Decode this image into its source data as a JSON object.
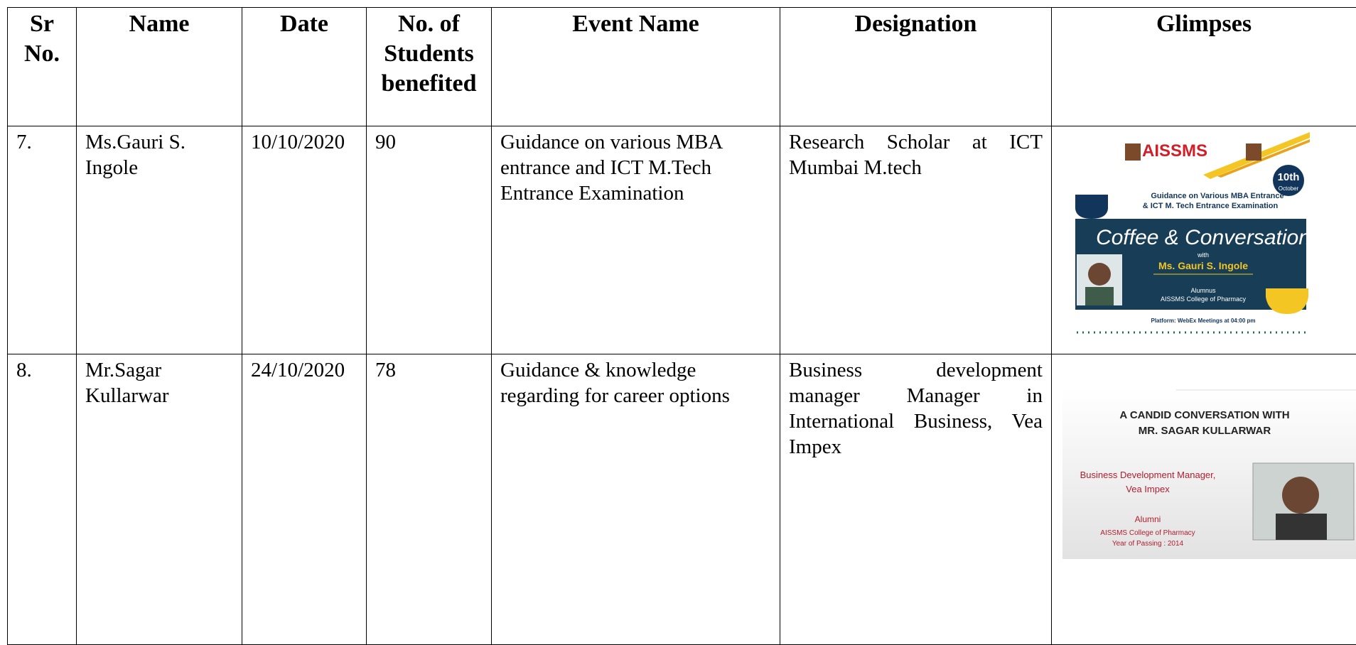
{
  "table": {
    "headers": [
      "Sr No.",
      "Name",
      "Date",
      "No. of Students benefited",
      "Event Name",
      "Designation",
      "Glimpses"
    ],
    "rows": [
      {
        "sr": "7.",
        "name": "Ms.Gauri S. Ingole",
        "date": "10/10/2020",
        "students": 90,
        "event": "Guidance on various MBA entrance and ICT M.Tech Entrance Examination",
        "designation": "Research Scholar at ICT Mumbai M.tech",
        "glimpse": {
          "org": "AISSMS",
          "day": "10th",
          "month": "October",
          "line1": "Guidance on Various MBA Entrance",
          "line2": "& ICT M. Tech Entrance Examination",
          "title": "Coffee & Conversation",
          "with": "with",
          "guest": "Ms. Gauri S. Ingole",
          "role": "Alumnus",
          "college": "AISSMS College of Pharmacy",
          "platform": "Platform: WebEx Meetings at 04:00 pm"
        }
      },
      {
        "sr": "8.",
        "name": "Mr.Sagar Kullarwar",
        "date": "24/10/2020",
        "students": 78,
        "event": "Guidance & knowledge regarding for career options",
        "designation": "Business development manager Manager in International Business, Vea Impex",
        "glimpse": {
          "title1": "A CANDID CONVERSATION WITH",
          "title2": "MR. SAGAR KULLARWAR",
          "role1": "Business Development Manager,",
          "role2": "Vea Impex",
          "alumni": "Alumni",
          "college": "AISSMS College of Pharmacy",
          "year": "Year of Passing : 2014"
        }
      }
    ]
  }
}
